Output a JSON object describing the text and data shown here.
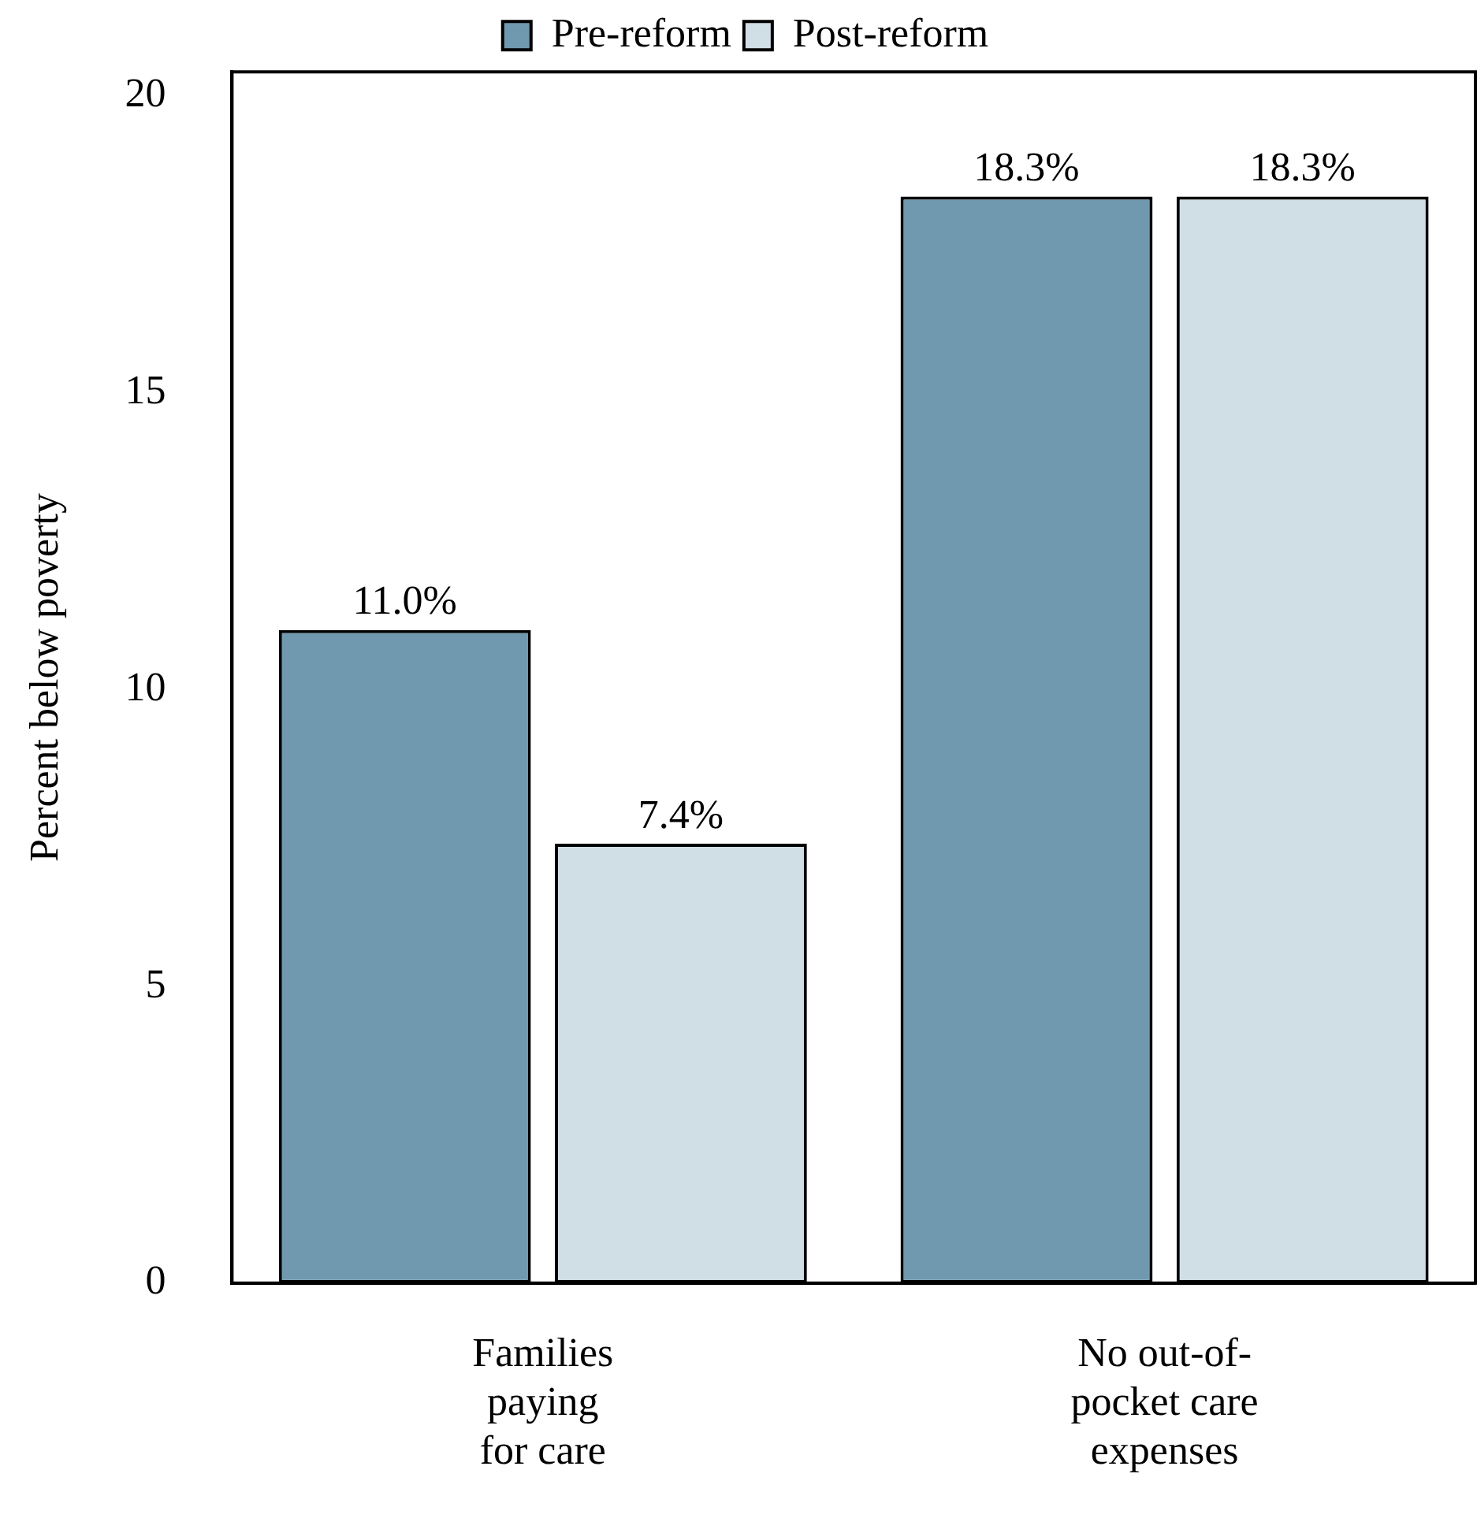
{
  "chart_data": {
    "type": "bar",
    "ylabel": "Percent below poverty",
    "categories": [
      "Families\npaying\nfor care",
      "No out-of-\npocket care\nexpenses"
    ],
    "series": [
      {
        "name": "Pre-reform",
        "color": "#7099b0",
        "values": [
          11.0,
          18.3
        ],
        "value_labels": [
          "11.0%",
          "18.3%"
        ]
      },
      {
        "name": "Post-reform",
        "color": "#d0dee5",
        "values": [
          7.4,
          18.3
        ],
        "value_labels": [
          "7.4%",
          "18.3%"
        ]
      }
    ],
    "ylim": [
      0,
      20.4
    ],
    "yticks": [
      0,
      5,
      10,
      15,
      20
    ],
    "grid": false,
    "legend": "top"
  }
}
